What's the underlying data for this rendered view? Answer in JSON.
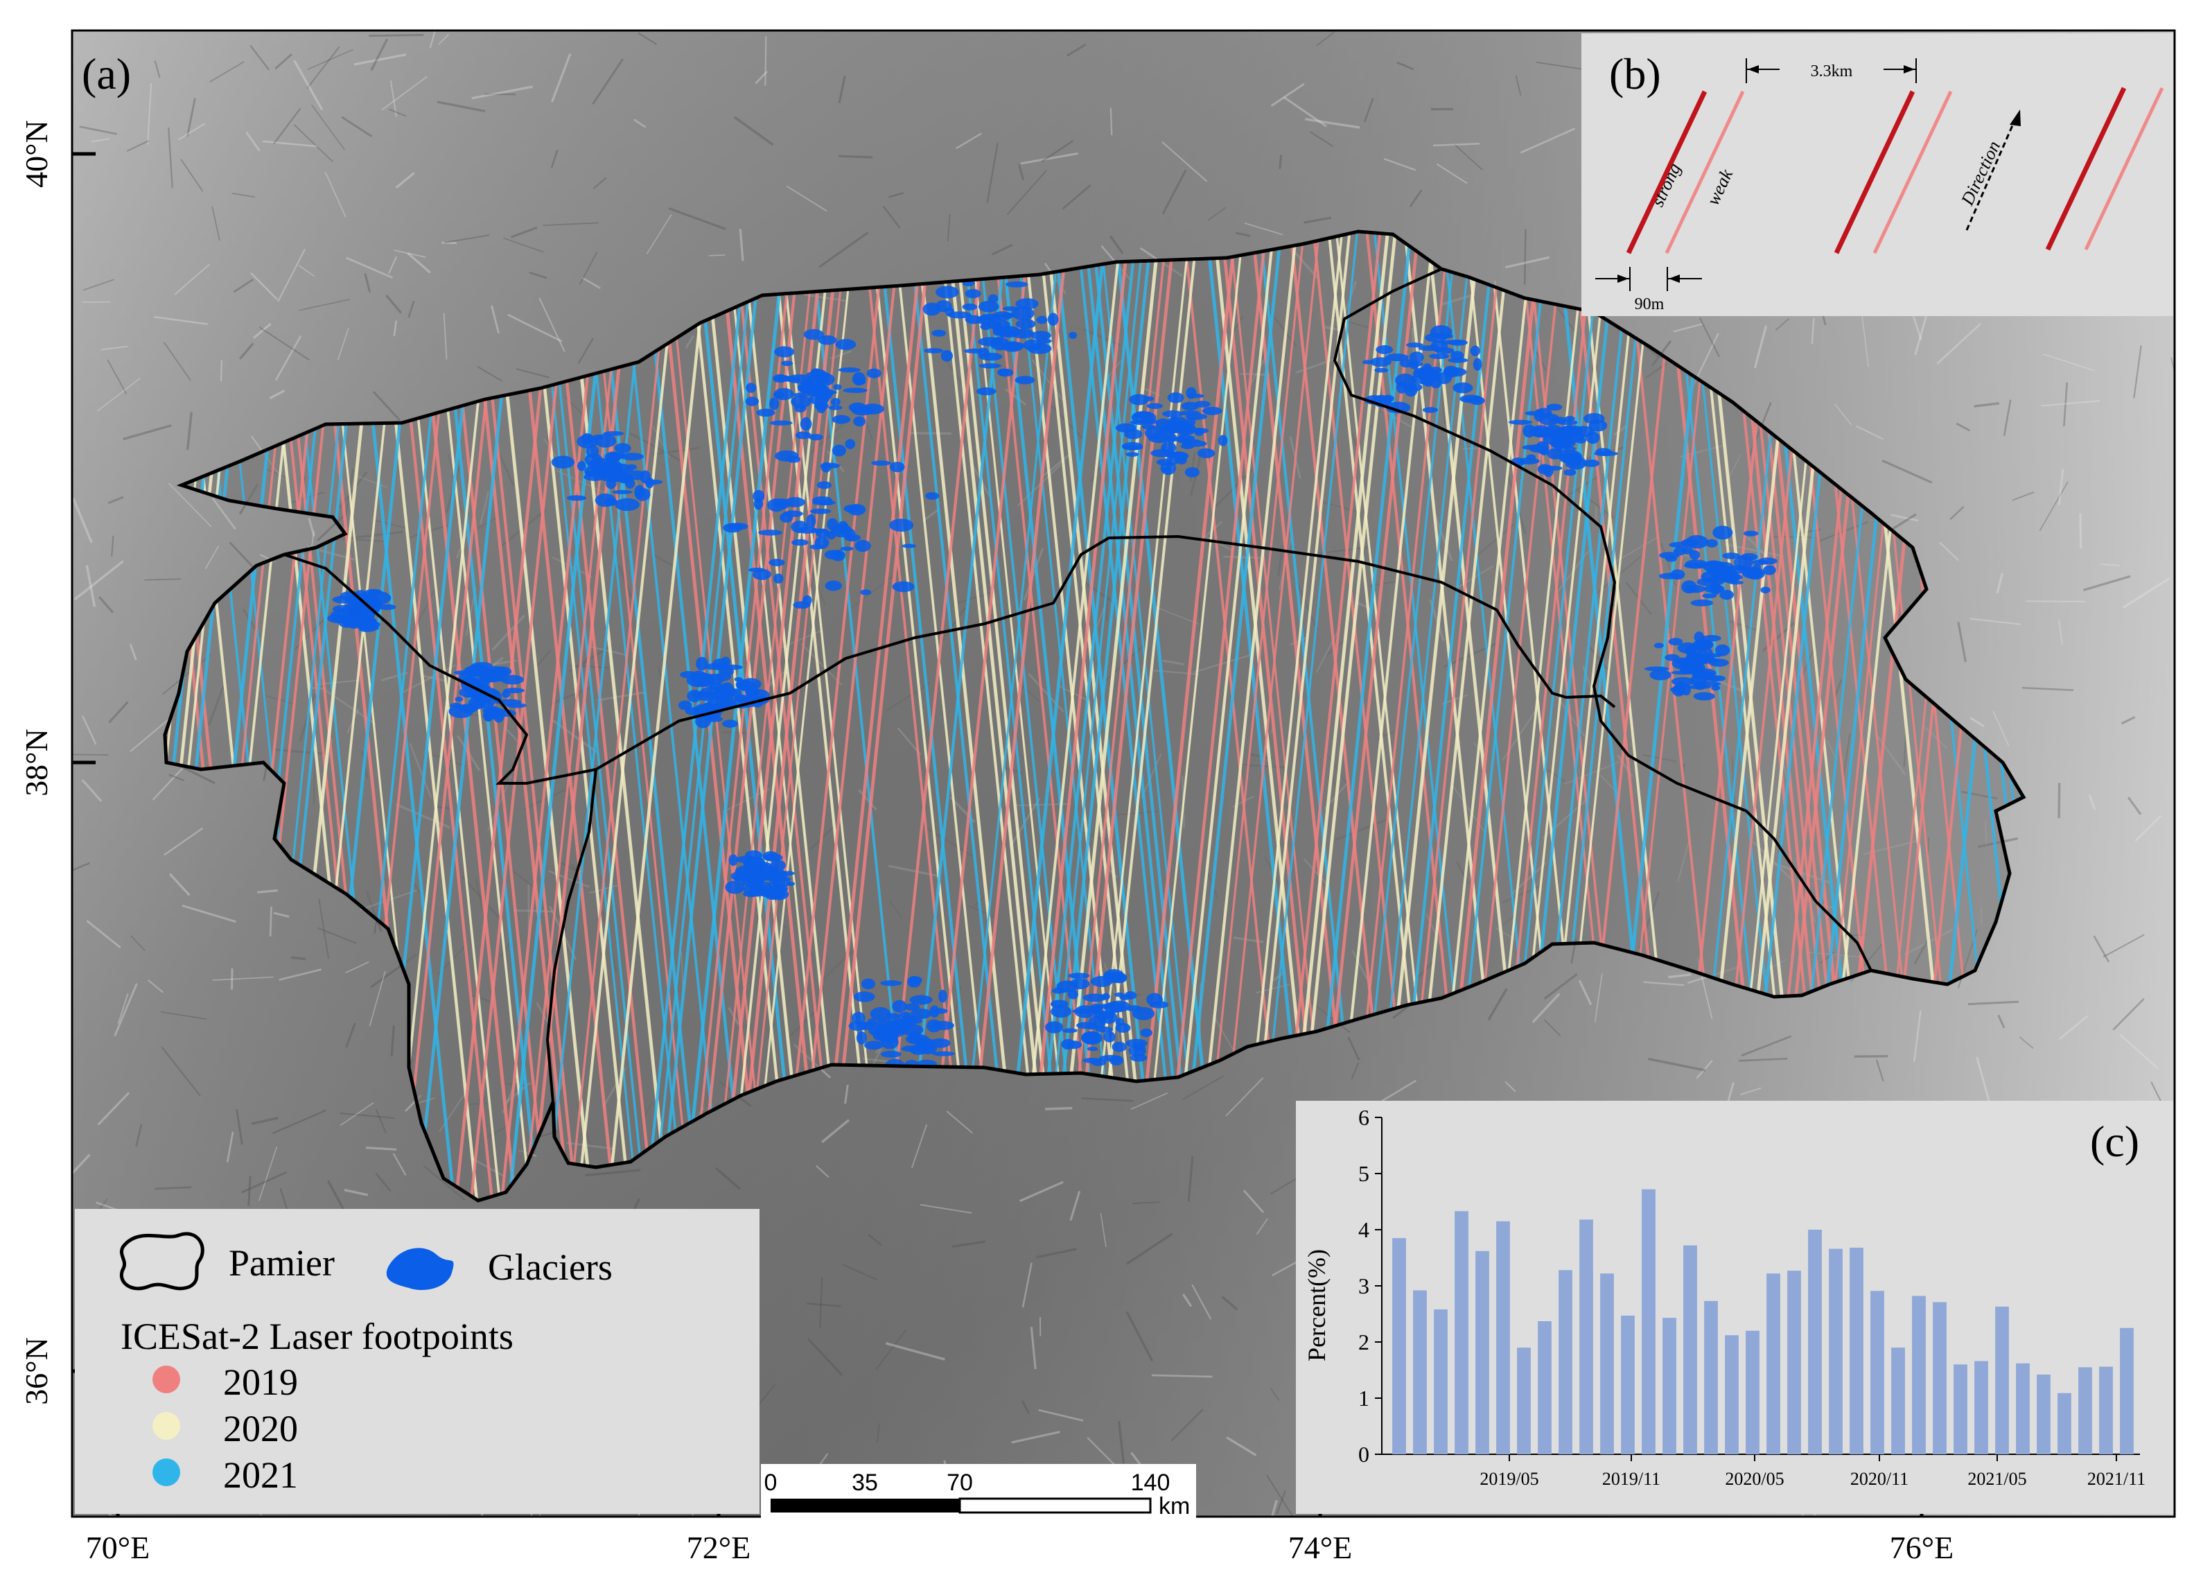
{
  "panels": {
    "a_label": "(a)",
    "b_label": "(b)",
    "c_label": "(c)"
  },
  "axes": {
    "lat_labels": [
      "40°N",
      "38°N",
      "36°N"
    ],
    "lon_labels": [
      "70°E",
      "72°E",
      "74°E",
      "76°E"
    ]
  },
  "legend": {
    "pamier": "Pamier",
    "glaciers": "Glaciers",
    "footprints_title": "ICESat-2 Laser footpoints",
    "years": [
      {
        "label": "2019",
        "color": "#f08080"
      },
      {
        "label": "2020",
        "color": "#f5f0c4"
      },
      {
        "label": "2021",
        "color": "#2fb5ea"
      }
    ],
    "glacier_color": "#0a5ee8"
  },
  "scalebar": {
    "ticks": [
      "0",
      "35",
      "70",
      "140"
    ],
    "unit": "km"
  },
  "inset_b": {
    "strong": "strong",
    "weak": "weak",
    "spacing": "3.3km",
    "pair_gap": "90m",
    "direction": "Direction",
    "strong_color": "#c0141c",
    "weak_color": "#f08a8a"
  },
  "chart_data": {
    "type": "bar",
    "ylabel": "Percent(%)",
    "xlabel": "",
    "ylim": [
      0,
      6
    ],
    "yticks": [
      0,
      1,
      2,
      3,
      4,
      5,
      6
    ],
    "xtick_labels": [
      "2019/05",
      "2019/11",
      "2020/05",
      "2020/11",
      "2021/05",
      "2021/11"
    ],
    "bar_color": "#8fa8d8",
    "values": [
      3.85,
      2.92,
      2.58,
      4.33,
      3.62,
      4.15,
      1.9,
      2.37,
      3.28,
      4.18,
      3.22,
      2.47,
      4.72,
      2.43,
      3.72,
      2.73,
      2.12,
      2.2,
      3.22,
      3.27,
      4.0,
      3.66,
      3.68,
      2.91,
      1.9,
      2.82,
      2.71,
      1.6,
      1.66,
      2.63,
      1.62,
      1.42,
      1.09,
      1.55,
      1.56,
      2.25
    ]
  }
}
